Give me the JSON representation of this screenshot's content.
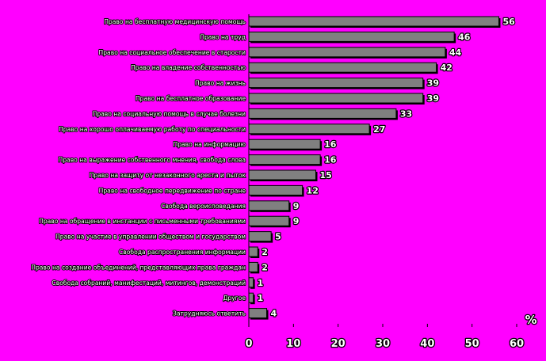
{
  "chart_data": {
    "type": "bar",
    "orientation": "horizontal",
    "title": "",
    "xlabel": "",
    "ylabel": "",
    "unit_label": "%",
    "xlim": [
      0,
      60
    ],
    "x_ticks": [
      0,
      10,
      20,
      30,
      40,
      50,
      60
    ],
    "grid": false,
    "bar_color": "#808080",
    "background_color": "#ff00ff",
    "categories": [
      "Право на бесплатную медицинскую помощь",
      "Право на труд",
      "Право на социальное обеспечение в старости",
      "Право на владение собственностью",
      "Право на жизнь",
      "Право на бесплатное образование",
      "Право на социальную помощь в случае болезни",
      "Право на хорошо оплачиваемую работу по специальности",
      "Право на информацию",
      "Право на выражение собственного мнения, свобода слова",
      "Право на защиту от незаконного ареста и пыток",
      "Право на свободное передвижение по стране",
      "Свобода вероисповедания",
      "Право на обращение в инстанции с письменными требованиями",
      "Право на участие в управлении обществом и государством",
      "Свобода распространения информации",
      "Право на создание объединений, представляющих права граждан",
      "Свобода собраний, манифестаций, митингов, демонстраций",
      "Другое",
      "Затрудняюсь ответить"
    ],
    "values": [
      56,
      46,
      44,
      42,
      39,
      39,
      33,
      27,
      16,
      16,
      15,
      12,
      9,
      9,
      5,
      2,
      2,
      1,
      1,
      4
    ]
  }
}
